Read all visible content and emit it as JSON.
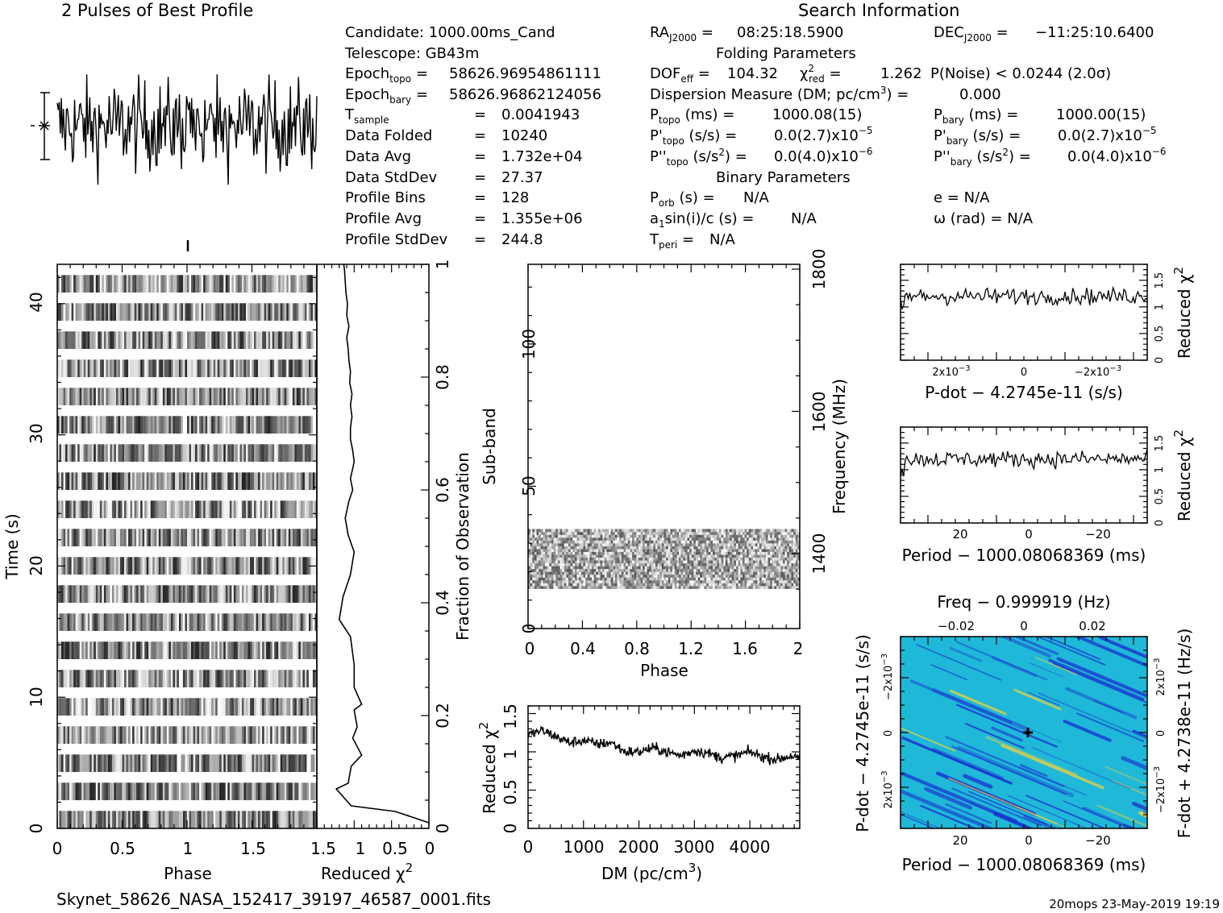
{
  "header": {
    "title": "2 Pulses of Best Profile",
    "search_title": "Search Information",
    "folding_title": "Folding Parameters",
    "binary_title": "Binary Parameters"
  },
  "footer": {
    "filename": "Skynet_58626_NASA_152417_39197_46587_0001.fits",
    "stamp": "20mops 23-May-2019 19:19"
  },
  "info_left": {
    "candidate": "Candidate:  1000.00ms_Cand",
    "telescope": "Telescope:  GB43m",
    "epoch_topo": "58626.96954861111",
    "epoch_bary": "58626.96862124056",
    "t_sample": "0.0041943",
    "data_folded": "10240",
    "data_avg": "1.732e+04",
    "data_stddev": "27.37",
    "profile_bins": "128",
    "profile_avg": "1.355e+06",
    "profile_stddev": "244.8"
  },
  "info_mid": {
    "ra": "08:25:18.5900",
    "dof_eff": "104.32",
    "chi2_red": "1.262",
    "dm_value": "0.000",
    "p_topo": "1000.08(15)",
    "pd_topo": "0.0(2.7)x10",
    "pd_topo_exp": "−5",
    "pdd_topo": "0.0(4.0)x10",
    "pdd_topo_exp": "−6",
    "p_orb": "N/A",
    "a1sini": "N/A",
    "t_peri": "N/A"
  },
  "info_right": {
    "dec": "−11:25:10.6400",
    "p_noise": "P(Noise) < 0.0244  (2.0σ)",
    "p_bary": "1000.00(15)",
    "pd_bary": "0.0(2.7)x10",
    "pd_bary_exp": "−5",
    "pdd_bary": "0.0(4.0)x10",
    "pdd_bary_exp": "−6",
    "e": "e = N/A",
    "omega": "ω (rad) = N/A"
  },
  "colors": {
    "ink": "#000000",
    "ppdot_low": "#1a2fcf",
    "ppdot_mid": "#1fb8d8",
    "ppdot_high": "#f4d23a"
  },
  "chart_data": [
    {
      "id": "profile",
      "type": "line",
      "title": "2 Pulses of Best Profile",
      "x_range": [
        0,
        2
      ],
      "points": 256,
      "note_errorbar": true
    },
    {
      "id": "time_phase",
      "type": "heatmap",
      "xlabel": "Phase",
      "ylabel": "Time (s)",
      "xticks": [
        "0",
        "0.5",
        "1",
        "1.5"
      ],
      "yticks": [
        "0",
        "10",
        "20",
        "30",
        "40"
      ],
      "xlim": [
        0,
        2
      ],
      "ylim": [
        0,
        43
      ],
      "rows": 20
    },
    {
      "id": "time_chi2",
      "type": "line",
      "xlabel": "Reduced χ",
      "xlabel_sup": "2",
      "xticks": [
        "1.5",
        "1",
        "0.5",
        "0"
      ],
      "yticks": [
        "0",
        "0.2",
        "0.4",
        "0.6",
        "0.8",
        "1"
      ],
      "ylabel_right": "Fraction of Observation",
      "xlim": [
        1.5,
        0
      ],
      "ylim": [
        0,
        1
      ],
      "x": [
        0.0,
        0.45,
        1.04,
        1.24,
        1.08,
        1.04,
        0.9,
        1.02,
        0.96,
        1.0,
        0.9,
        1.0,
        1.0,
        1.05,
        1.2,
        1.15,
        1.05,
        1.0,
        1.08,
        1.12,
        1.07,
        1.02,
        1.05,
        1.0,
        1.02,
        1.05,
        1.05,
        1.03,
        1.05,
        1.03,
        1.06,
        1.05,
        1.07,
        1.08,
        1.1,
        1.07,
        1.1,
        1.09,
        1.11,
        1.12,
        1.13,
        1.14
      ],
      "y": [
        0.01,
        0.03,
        0.04,
        0.07,
        0.08,
        0.11,
        0.13,
        0.16,
        0.18,
        0.21,
        0.22,
        0.25,
        0.29,
        0.34,
        0.37,
        0.41,
        0.45,
        0.49,
        0.52,
        0.55,
        0.58,
        0.6,
        0.62,
        0.65,
        0.67,
        0.69,
        0.71,
        0.73,
        0.75,
        0.77,
        0.79,
        0.81,
        0.83,
        0.85,
        0.87,
        0.89,
        0.91,
        0.93,
        0.95,
        0.97,
        0.99,
        1.0
      ]
    },
    {
      "id": "subband_phase",
      "type": "heatmap",
      "xlabel": "Phase",
      "ylabel": "Sub-band",
      "ylabel_right": "Frequency (MHz)",
      "xticks": [
        "0",
        "0.4",
        "0.8",
        "1.2",
        "1.6",
        "2"
      ],
      "yticks": [
        "0",
        "50",
        "100"
      ],
      "yticks_right": [
        "1400",
        "1600",
        "1800"
      ],
      "xlim": [
        0,
        2
      ],
      "ylim": [
        0,
        128
      ],
      "filled_bands": [
        14,
        35
      ]
    },
    {
      "id": "dm_chi2",
      "type": "line",
      "xlabel": "DM (pc/cm",
      "xlabel_sup": "3",
      "xlabel_end": ")",
      "ylabel": "Reduced χ",
      "ylabel_sup": "2",
      "xticks": [
        "0",
        "1000",
        "2000",
        "3000",
        "4000"
      ],
      "yticks": [
        "0",
        "0.5",
        "1",
        "1.5"
      ],
      "xlim": [
        0,
        4900
      ],
      "ylim": [
        0,
        1.6
      ],
      "x": [
        0,
        250,
        500,
        750,
        1000,
        1250,
        1500,
        1750,
        2000,
        2250,
        2500,
        2750,
        3000,
        3250,
        3500,
        3750,
        4000,
        4250,
        4500,
        4750,
        4900
      ],
      "y": [
        1.22,
        1.28,
        1.2,
        1.12,
        1.15,
        1.1,
        1.12,
        1.0,
        1.0,
        1.05,
        1.0,
        0.95,
        1.02,
        0.98,
        0.92,
        0.95,
        1.0,
        0.93,
        0.9,
        0.95,
        0.9
      ]
    },
    {
      "id": "pdot_chi2",
      "type": "line",
      "xlabel": "P-dot − 4.2745e-11 (s/s)",
      "ylabel_right": "Reduced χ",
      "ylabel_sup": "2",
      "xticks": [
        "2x10",
        "0",
        "−2x10"
      ],
      "xticks_exp": "−3",
      "yticks": [
        "0",
        "0.5",
        "1",
        "1.5"
      ],
      "ylim": [
        0,
        1.8
      ],
      "mean": 1.2
    },
    {
      "id": "period_chi2",
      "type": "line",
      "xlabel": "Period − 1000.08068369 (ms)",
      "ylabel_right": "Reduced χ",
      "ylabel_sup": "2",
      "xticks": [
        "20",
        "0",
        "−20"
      ],
      "yticks": [
        "0",
        "0.5",
        "1",
        "1.5"
      ],
      "ylim": [
        0,
        1.8
      ],
      "mean": 1.2
    },
    {
      "id": "p_pdot",
      "type": "heatmap",
      "title": "Freq − 0.999919 (Hz)",
      "xlabel": "Period − 1000.08068369 (ms)",
      "ylabel": "P-dot − 4.2745e-11 (s/s)",
      "ylabel_right": "F-dot + 4.2738e-11 (Hz/s)",
      "xticks": [
        "20",
        "0",
        "−20"
      ],
      "xticks_top": [
        "−0.02",
        "0",
        "0.02"
      ],
      "yticks": [
        "2x10",
        "0",
        "−2x10"
      ],
      "yticks_right": [
        "−2x10",
        "0",
        "2x10"
      ],
      "ytick_exp": "−3"
    }
  ]
}
